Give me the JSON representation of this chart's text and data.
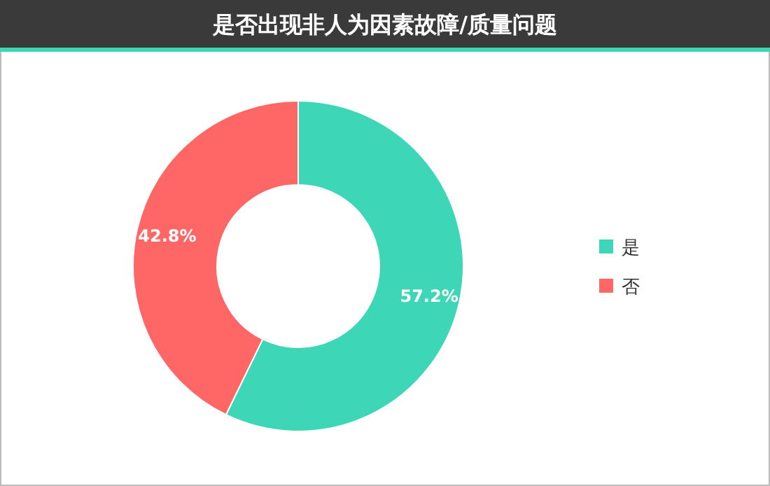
{
  "chart_data": {
    "type": "donut",
    "title": "是否出现非人为因素故障/质量问题",
    "categories": [
      "是",
      "否"
    ],
    "values": [
      57.2,
      42.8
    ],
    "colors": [
      "#3dd6b7",
      "#ff6666"
    ],
    "value_labels": [
      "57.2%",
      "42.8%"
    ],
    "legend": "right"
  }
}
